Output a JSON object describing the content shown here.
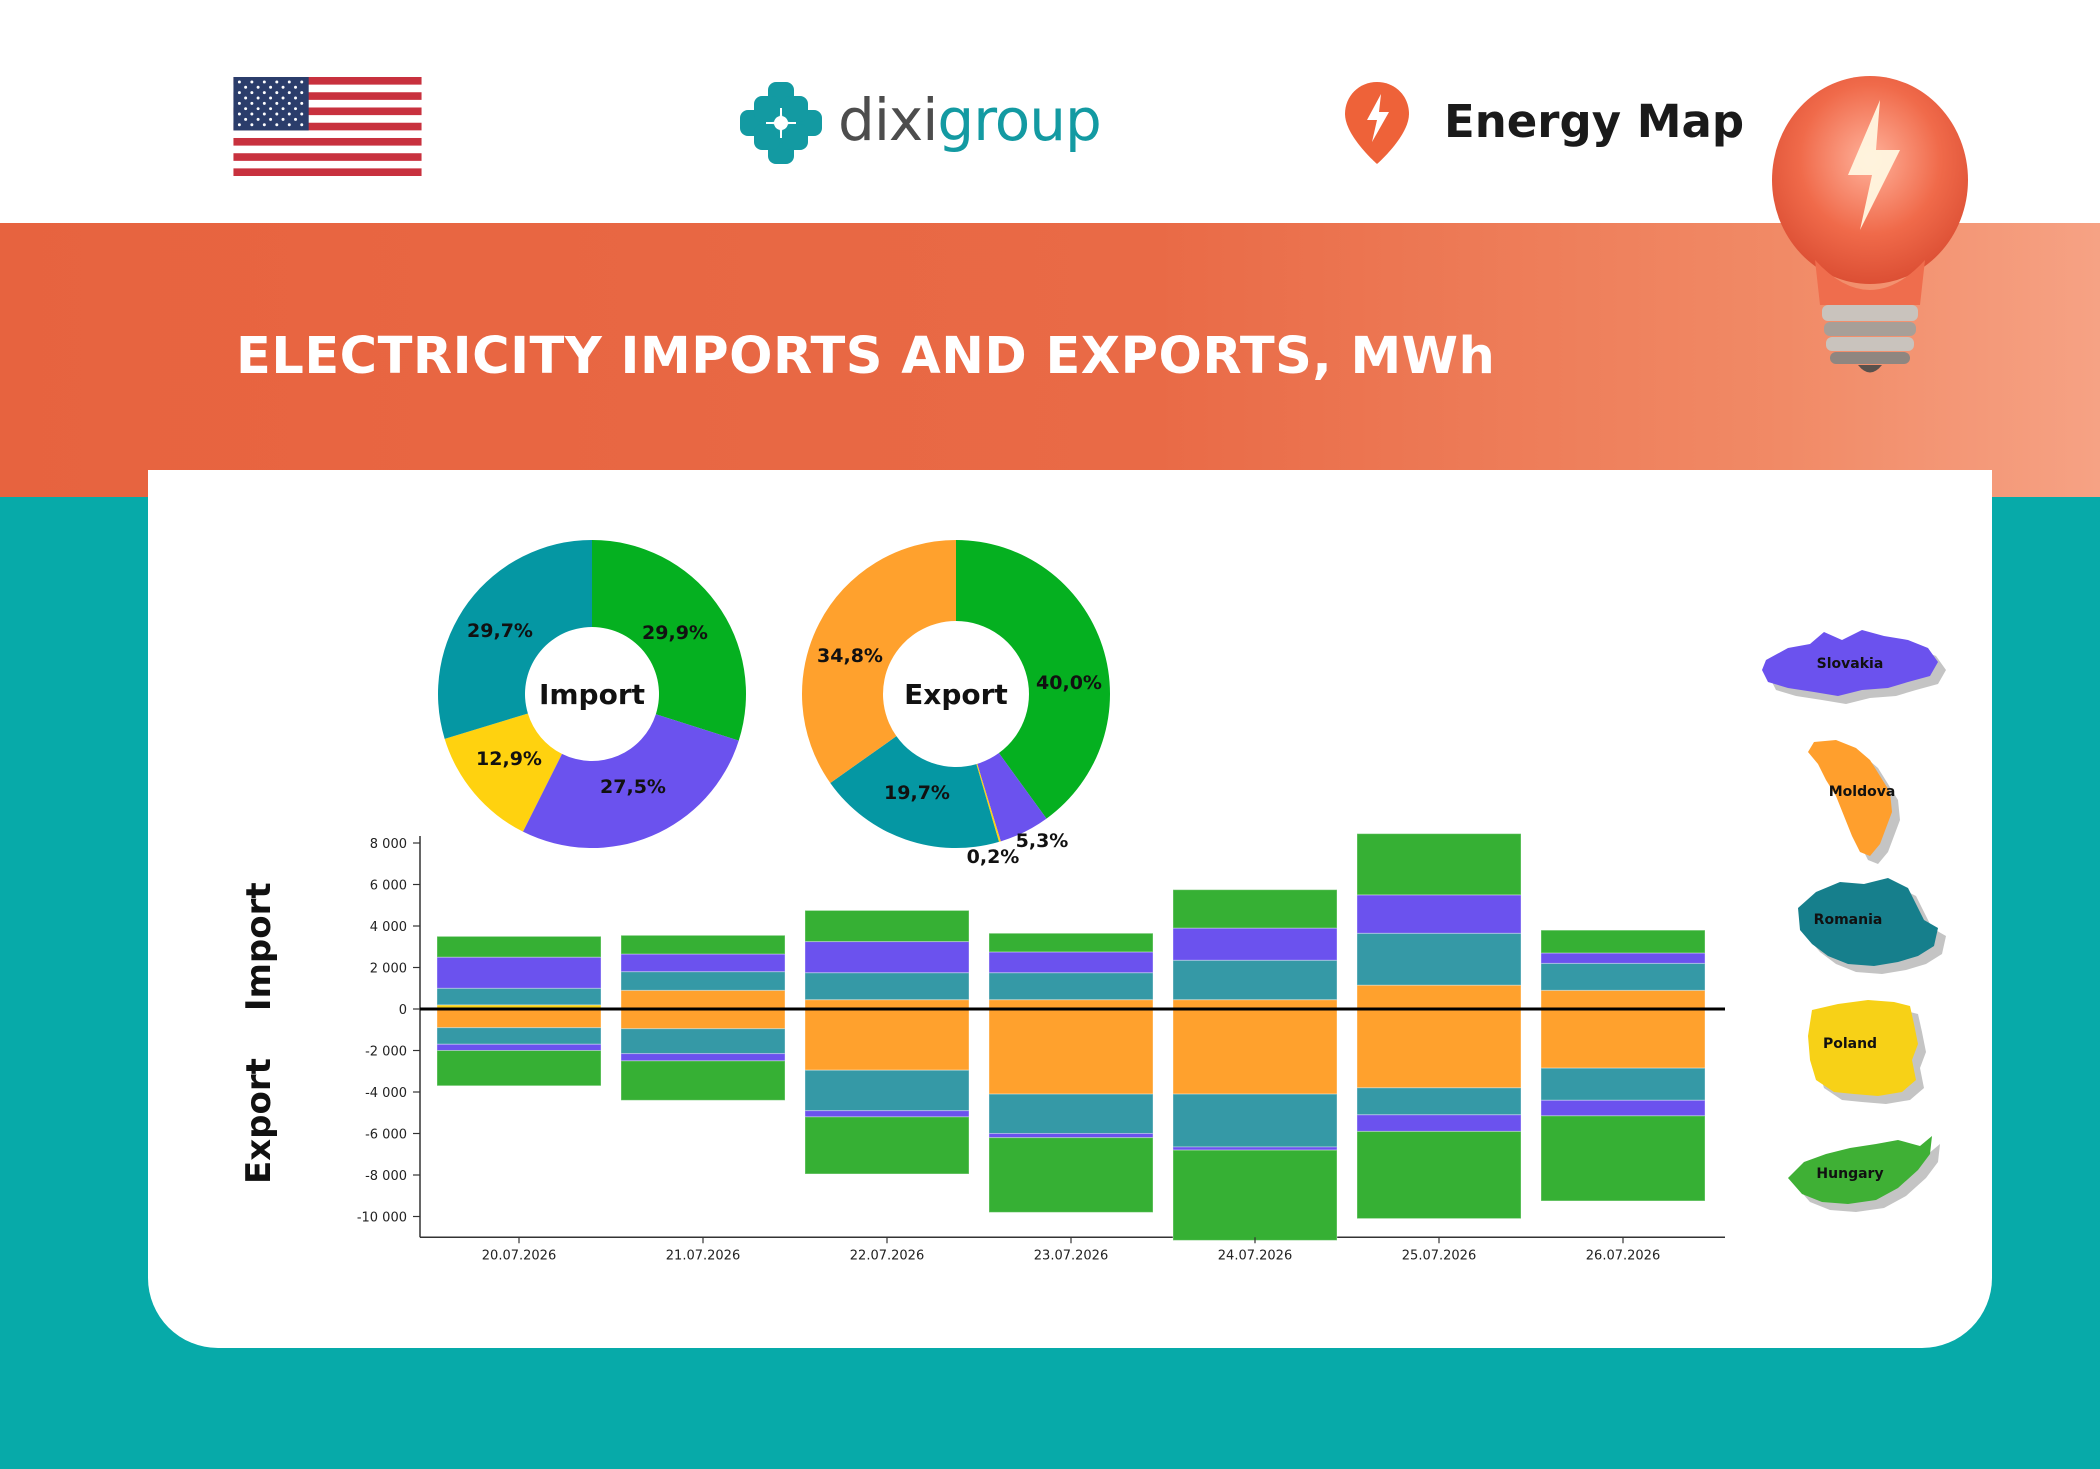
{
  "header": {
    "logo_text_1": "dixi",
    "logo_text_2": "group",
    "energy_map_label": "Energy Map"
  },
  "banner": {
    "title": "ELECTRICITY IMPORTS AND EXPORTS, MWh"
  },
  "colors": {
    "brand_teal": "#07aaa9",
    "banner_orange": "#e8653f",
    "Hungary": "#36b034",
    "Slovakia": "#6b52ee",
    "Romania": "#3599a6",
    "Poland": "#f7d117",
    "Moldova": "#ff9f2d"
  },
  "legend_maps": [
    {
      "name": "Slovakia",
      "color": "#6b52ee"
    },
    {
      "name": "Moldova",
      "color": "#ff9f2d"
    },
    {
      "name": "Romania",
      "color": "#167f8c"
    },
    {
      "name": "Poland",
      "color": "#f7d117"
    },
    {
      "name": "Hungary",
      "color": "#3fb035"
    }
  ],
  "chart_data": [
    {
      "type": "pie",
      "center_label": "Import",
      "slices": [
        {
          "label": "29,9%",
          "value": 29.9,
          "color": "#05b020"
        },
        {
          "label": "27,5%",
          "value": 27.5,
          "color": "#6b52ee"
        },
        {
          "label": "12,9%",
          "value": 12.9,
          "color": "#ffd20f"
        },
        {
          "label": "29,7%",
          "value": 29.7,
          "color": "#0597a3"
        }
      ]
    },
    {
      "type": "pie",
      "center_label": "Export",
      "slices": [
        {
          "label": "40,0%",
          "value": 40.0,
          "color": "#05b020"
        },
        {
          "label": "5,3%",
          "value": 5.3,
          "color": "#6b52ee"
        },
        {
          "label": "0,2%",
          "value": 0.2,
          "color": "#ffd20f"
        },
        {
          "label": "19,7%",
          "value": 19.7,
          "color": "#0597a3"
        },
        {
          "label": "34,8%",
          "value": 34.8,
          "color": "#ffa12d"
        }
      ]
    },
    {
      "type": "bar",
      "stacked": true,
      "ylabel_positive": "Import",
      "ylabel_negative": "Export",
      "ylim": [
        -11000,
        8200
      ],
      "yticks": [
        8000,
        6000,
        4000,
        2000,
        0,
        -2000,
        -4000,
        -6000,
        -8000,
        -10000
      ],
      "ytick_labels": [
        "8 000",
        "6 000",
        "4 000",
        "2 000",
        "0",
        "-2 000",
        "-4 000",
        "-6 000",
        "-8 000",
        "-10 000"
      ],
      "categories": [
        "20.07.2026",
        "21.07.2026",
        "22.07.2026",
        "23.07.2026",
        "24.07.2026",
        "25.07.2026",
        "26.07.2026"
      ],
      "series": [
        {
          "name": "Poland",
          "color": "#f7d117",
          "values": [
            200,
            0,
            0,
            0,
            0,
            0,
            0
          ]
        },
        {
          "name": "Moldova",
          "color": "#ffa12d",
          "values": [
            -900,
            900,
            450,
            450,
            450,
            1150,
            900
          ]
        },
        {
          "name": "Romania",
          "color": "#3599a6",
          "values": [
            800,
            900,
            1300,
            1300,
            1900,
            2500,
            1300
          ]
        },
        {
          "name": "Slovakia",
          "color": "#6b52ee",
          "values": [
            1500,
            850,
            1500,
            1000,
            1550,
            1850,
            500
          ]
        },
        {
          "name": "Hungary",
          "color": "#36b034",
          "values": [
            1000,
            900,
            1500,
            900,
            1850,
            2950,
            1100
          ]
        }
      ],
      "series_negative": [
        {
          "name": "Moldova",
          "color": "#ffa12d",
          "values": [
            0,
            -950,
            -2950,
            -4100,
            -4100,
            -3800,
            -2850
          ]
        },
        {
          "name": "Romania",
          "color": "#3599a6",
          "values": [
            -800,
            -1200,
            -1950,
            -1900,
            -2550,
            -1300,
            -1550
          ]
        },
        {
          "name": "Slovakia",
          "color": "#6b52ee",
          "values": [
            -300,
            -350,
            -300,
            -200,
            -150,
            -800,
            -750
          ]
        },
        {
          "name": "Hungary",
          "color": "#36b034",
          "values": [
            -1700,
            -1900,
            -2750,
            -3600,
            -4350,
            -4200,
            -4100
          ]
        }
      ]
    }
  ]
}
